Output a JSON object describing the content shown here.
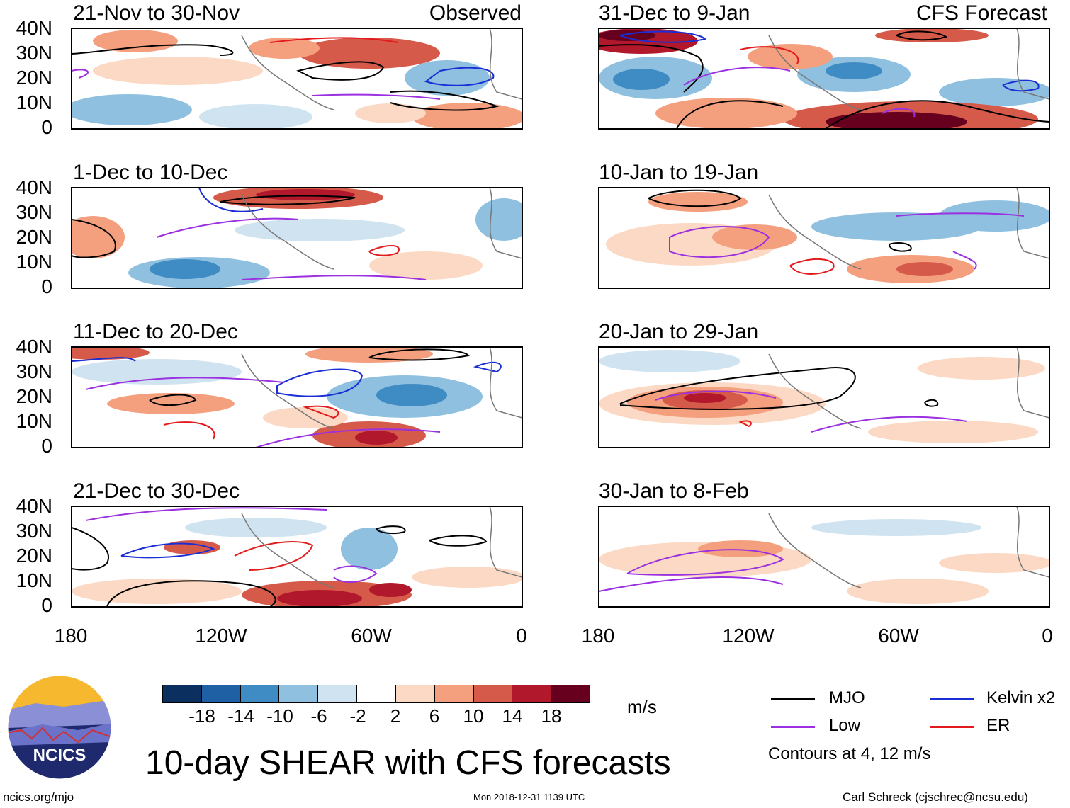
{
  "panels_left": [
    {
      "title": "21-Nov to 30-Nov",
      "tag": "Observed"
    },
    {
      "title": "1-Dec to 10-Dec",
      "tag": ""
    },
    {
      "title": "11-Dec to 20-Dec",
      "tag": ""
    },
    {
      "title": "21-Dec to 30-Dec",
      "tag": ""
    }
  ],
  "panels_right": [
    {
      "title": "31-Dec to 9-Jan",
      "tag": "CFS Forecast"
    },
    {
      "title": "10-Jan to 19-Jan",
      "tag": ""
    },
    {
      "title": "20-Jan to 29-Jan",
      "tag": ""
    },
    {
      "title": "30-Jan to 8-Feb",
      "tag": ""
    }
  ],
  "y_axis_labels": [
    "40N",
    "30N",
    "20N",
    "10N",
    "0"
  ],
  "x_axis_labels": [
    "180",
    "120W",
    "60W",
    "0"
  ],
  "colorbar": {
    "colors": [
      "#0b2f5e",
      "#1f5fa3",
      "#3f8cc4",
      "#8fc0df",
      "#cfe3f0",
      "#ffffff",
      "#fcd9c4",
      "#f4a07f",
      "#d65a4a",
      "#b2182b",
      "#67001f"
    ],
    "labels": [
      "-18",
      "-14",
      "-10",
      "-6",
      "-2",
      "2",
      "6",
      "10",
      "14",
      "18"
    ],
    "units": "m/s"
  },
  "legend": {
    "items": [
      {
        "label": "MJO",
        "color": "#000000"
      },
      {
        "label": "Kelvin x2",
        "color": "#1a2ed6"
      },
      {
        "label": "Low",
        "color": "#9b30e0"
      },
      {
        "label": "ER",
        "color": "#e31a1c"
      }
    ],
    "note": "Contours at 4, 12 m/s"
  },
  "main_title": "10-day SHEAR with CFS forecasts",
  "footer": {
    "left": "ncics.org/mjo",
    "center": "Mon 2018-12-31 1139 UTC",
    "right": "Carl Schreck (cjschrec@ncsu.edu)"
  },
  "logo_text": "NCICS"
}
